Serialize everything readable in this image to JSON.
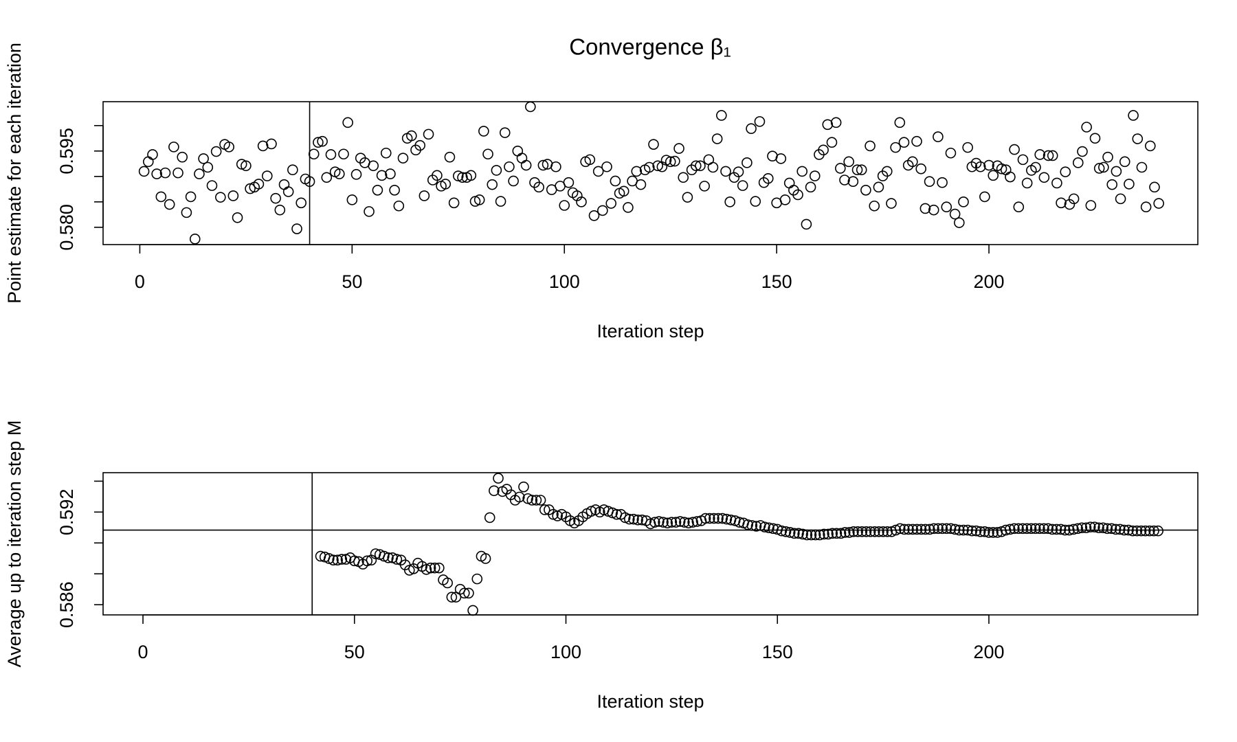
{
  "chart_data": [
    {
      "type": "scatter",
      "title": "Convergence β₁",
      "xlabel": "Iteration step",
      "ylabel": "Point estimate for each iteration",
      "xlim": [
        -8.65,
        249.2
      ],
      "ylim": [
        0.5766,
        0.6047
      ],
      "xticks": [
        0,
        50,
        100,
        150,
        200
      ],
      "yticks": [
        {
          "value": 0.58,
          "label": "0.580"
        },
        {
          "value": 0.585,
          "label": null
        },
        {
          "value": 0.59,
          "label": null
        },
        {
          "value": 0.595,
          "label": "0.595"
        },
        {
          "value": 0.6,
          "label": null
        }
      ],
      "vlines": [
        40
      ],
      "hlines": [],
      "color": "#000000",
      "x": [
        1,
        2,
        3,
        4,
        5,
        6,
        7,
        8,
        9,
        10,
        11,
        12,
        13,
        14,
        15,
        16,
        17,
        18,
        19,
        20,
        21,
        22,
        23,
        24,
        25,
        26,
        27,
        28,
        29,
        30,
        31,
        32,
        33,
        34,
        35,
        36,
        37,
        38,
        39,
        40,
        41,
        42,
        43,
        44,
        45,
        46,
        47,
        48,
        49,
        50,
        51,
        52,
        53,
        54,
        55,
        56,
        57,
        58,
        59,
        60,
        61,
        62,
        63,
        64,
        65,
        66,
        67,
        68,
        69,
        70,
        71,
        72,
        73,
        74,
        75,
        76,
        77,
        78,
        79,
        80,
        81,
        82,
        83,
        84,
        85,
        86,
        87,
        88,
        89,
        90,
        91,
        92,
        93,
        94,
        95,
        96,
        97,
        98,
        99,
        100,
        101,
        102,
        103,
        104,
        105,
        106,
        107,
        108,
        109,
        110,
        111,
        112,
        113,
        114,
        115,
        116,
        117,
        118,
        119,
        120,
        121,
        122,
        123,
        124,
        125,
        126,
        127,
        128,
        129,
        130,
        131,
        132,
        133,
        134,
        135,
        136,
        137,
        138,
        139,
        140,
        141,
        142,
        143,
        144,
        145,
        146,
        147,
        148,
        149,
        150,
        151,
        152,
        153,
        154,
        155,
        156,
        157,
        158,
        159,
        160,
        161,
        162,
        163,
        164,
        165,
        166,
        167,
        168,
        169,
        170,
        171,
        172,
        173,
        174,
        175,
        176,
        177,
        178,
        179,
        180,
        181,
        182,
        183,
        184,
        185,
        186,
        187,
        188,
        189,
        190,
        191,
        192,
        193,
        194,
        195,
        196,
        197,
        198,
        199,
        200,
        201,
        202,
        203,
        204,
        205,
        206,
        207,
        208,
        209,
        210,
        211,
        212,
        213,
        214,
        215,
        216,
        217,
        218,
        219,
        220,
        221,
        222,
        223,
        224,
        225,
        226,
        227,
        228,
        229,
        230,
        231,
        232,
        233,
        234,
        235,
        236,
        237,
        238,
        239,
        240
      ],
      "values": [
        0.591,
        0.5929,
        0.5943,
        0.5905,
        0.586,
        0.5907,
        0.5845,
        0.5958,
        0.5907,
        0.5938,
        0.5829,
        0.586,
        0.5777,
        0.5905,
        0.5935,
        0.5918,
        0.5882,
        0.5949,
        0.5859,
        0.5963,
        0.5958,
        0.5862,
        0.5819,
        0.5924,
        0.5921,
        0.5876,
        0.5879,
        0.5885,
        0.596,
        0.5901,
        0.5964,
        0.5857,
        0.5834,
        0.5884,
        0.587,
        0.5913,
        0.5797,
        0.5848,
        0.5895,
        0.589,
        0.5944,
        0.5967,
        0.5969,
        0.5898,
        0.5943,
        0.5909,
        0.5905,
        0.5944,
        0.6006,
        0.5854,
        0.5904,
        0.5936,
        0.5927,
        0.5831,
        0.5921,
        0.5873,
        0.5902,
        0.5946,
        0.5905,
        0.5873,
        0.5842,
        0.5936,
        0.5975,
        0.598,
        0.5952,
        0.5961,
        0.5862,
        0.5983,
        0.5893,
        0.5902,
        0.5881,
        0.5885,
        0.5938,
        0.5848,
        0.5901,
        0.5898,
        0.5898,
        0.5902,
        0.5851,
        0.5854,
        0.5989,
        0.5944,
        0.5884,
        0.5912,
        0.5851,
        0.5986,
        0.5919,
        0.5891,
        0.595,
        0.5936,
        0.5922,
        0.6037,
        0.5888,
        0.5879,
        0.5922,
        0.5924,
        0.5874,
        0.5919,
        0.5881,
        0.5843,
        0.5888,
        0.5868,
        0.5862,
        0.585,
        0.5929,
        0.5933,
        0.5823,
        0.591,
        0.5833,
        0.5919,
        0.5847,
        0.5891,
        0.5867,
        0.5871,
        0.5839,
        0.5891,
        0.591,
        0.5884,
        0.5913,
        0.5918,
        0.5963,
        0.5921,
        0.5919,
        0.5932,
        0.5929,
        0.593,
        0.5955,
        0.5898,
        0.5859,
        0.5913,
        0.5921,
        0.5921,
        0.5881,
        0.5933,
        0.5918,
        0.5974,
        0.602,
        0.591,
        0.585,
        0.5898,
        0.5909,
        0.5882,
        0.5927,
        0.5994,
        0.5851,
        0.6008,
        0.5888,
        0.5896,
        0.594,
        0.5848,
        0.5935,
        0.5854,
        0.5887,
        0.5873,
        0.5864,
        0.591,
        0.5806,
        0.5879,
        0.5901,
        0.5943,
        0.5952,
        0.6002,
        0.5967,
        0.6006,
        0.5916,
        0.5893,
        0.5929,
        0.589,
        0.5913,
        0.5913,
        0.5873,
        0.596,
        0.5842,
        0.5879,
        0.5901,
        0.591,
        0.5847,
        0.5957,
        0.6006,
        0.5967,
        0.5922,
        0.5929,
        0.5969,
        0.5915,
        0.5837,
        0.589,
        0.5834,
        0.5978,
        0.5888,
        0.584,
        0.5946,
        0.5826,
        0.5809,
        0.585,
        0.5957,
        0.5919,
        0.5926,
        0.5919,
        0.586,
        0.5922,
        0.5902,
        0.5921,
        0.5915,
        0.5913,
        0.5899,
        0.5953,
        0.584,
        0.5933,
        0.5887,
        0.5912,
        0.5918,
        0.5943,
        0.5898,
        0.5941,
        0.5941,
        0.5887,
        0.5848,
        0.5909,
        0.5845,
        0.5856,
        0.5927,
        0.5949,
        0.5997,
        0.5843,
        0.5975,
        0.5916,
        0.5918,
        0.5938,
        0.5884,
        0.591,
        0.5856,
        0.5929,
        0.5885,
        0.602,
        0.5974,
        0.5918,
        0.584,
        0.596,
        0.5879,
        0.5847
      ]
    },
    {
      "type": "scatter",
      "xlabel": "Iteration step",
      "ylabel": "Average up to iteration step M",
      "xlim": [
        -9.43,
        249.4
      ],
      "ylim": [
        0.58534,
        0.59455
      ],
      "xticks": [
        0,
        50,
        100,
        150,
        200
      ],
      "yticks": [
        {
          "value": 0.586,
          "label": "0.586"
        },
        {
          "value": 0.588,
          "label": null
        },
        {
          "value": 0.59,
          "label": null
        },
        {
          "value": 0.592,
          "label": "0.592"
        },
        {
          "value": 0.594,
          "label": null
        }
      ],
      "vlines": [
        40
      ],
      "hlines": [
        0.59083
      ],
      "color": "#000000",
      "x": [
        42,
        43,
        44,
        45,
        46,
        47,
        48,
        49,
        50,
        51,
        52,
        53,
        54,
        55,
        56,
        57,
        58,
        59,
        60,
        61,
        62,
        63,
        64,
        65,
        66,
        67,
        68,
        69,
        70,
        71,
        72,
        73,
        74,
        75,
        76,
        77,
        78,
        79,
        80,
        81,
        82,
        83,
        84,
        85,
        86,
        87,
        88,
        89,
        90,
        91,
        92,
        93,
        94,
        95,
        96,
        97,
        98,
        99,
        100,
        101,
        102,
        103,
        104,
        105,
        106,
        107,
        108,
        109,
        110,
        111,
        112,
        113,
        114,
        115,
        116,
        117,
        118,
        119,
        120,
        121,
        122,
        123,
        124,
        125,
        126,
        127,
        128,
        129,
        130,
        131,
        132,
        133,
        134,
        135,
        136,
        137,
        138,
        139,
        140,
        141,
        142,
        143,
        144,
        145,
        146,
        147,
        148,
        149,
        150,
        151,
        152,
        153,
        154,
        155,
        156,
        157,
        158,
        159,
        160,
        161,
        162,
        163,
        164,
        165,
        166,
        167,
        168,
        169,
        170,
        171,
        172,
        173,
        174,
        175,
        176,
        177,
        178,
        179,
        180,
        181,
        182,
        183,
        184,
        185,
        186,
        187,
        188,
        189,
        190,
        191,
        192,
        193,
        194,
        195,
        196,
        197,
        198,
        199,
        200,
        201,
        202,
        203,
        204,
        205,
        206,
        207,
        208,
        209,
        210,
        211,
        212,
        213,
        214,
        215,
        216,
        217,
        218,
        219,
        220,
        221,
        222,
        223,
        224,
        225,
        226,
        227,
        228,
        229,
        230,
        231,
        232,
        233,
        234,
        235,
        236,
        237,
        238,
        239,
        240
      ],
      "values": [
        0.58914,
        0.58909,
        0.58899,
        0.58889,
        0.58889,
        0.58894,
        0.58894,
        0.58904,
        0.58884,
        0.58879,
        0.58863,
        0.58884,
        0.58889,
        0.5893,
        0.58925,
        0.58914,
        0.58904,
        0.58904,
        0.58894,
        0.58889,
        0.58858,
        0.58823,
        0.58833,
        0.58869,
        0.58848,
        0.58828,
        0.58838,
        0.58838,
        0.58838,
        0.58761,
        0.58741,
        0.58649,
        0.58649,
        0.587,
        0.58675,
        0.58675,
        0.58563,
        0.58767,
        0.58914,
        0.58899,
        0.59164,
        0.59338,
        0.59419,
        0.59333,
        0.59348,
        0.59312,
        0.59277,
        0.59297,
        0.59363,
        0.59287,
        0.59277,
        0.59277,
        0.59277,
        0.59215,
        0.59215,
        0.59185,
        0.59175,
        0.59185,
        0.59169,
        0.59144,
        0.59129,
        0.59144,
        0.59169,
        0.5919,
        0.59205,
        0.59215,
        0.592,
        0.59215,
        0.59205,
        0.59195,
        0.59185,
        0.59185,
        0.59164,
        0.59154,
        0.59154,
        0.59149,
        0.59149,
        0.59144,
        0.59124,
        0.59134,
        0.59139,
        0.59134,
        0.59129,
        0.59134,
        0.59134,
        0.59139,
        0.59134,
        0.59129,
        0.59134,
        0.59139,
        0.59144,
        0.59159,
        0.59159,
        0.59159,
        0.59159,
        0.59159,
        0.59154,
        0.59149,
        0.59144,
        0.59134,
        0.59129,
        0.59118,
        0.59113,
        0.59108,
        0.59113,
        0.59103,
        0.59098,
        0.59093,
        0.59088,
        0.59078,
        0.59073,
        0.59068,
        0.59062,
        0.59062,
        0.59057,
        0.59052,
        0.59052,
        0.59052,
        0.59052,
        0.59057,
        0.59057,
        0.59062,
        0.59062,
        0.59062,
        0.59068,
        0.59068,
        0.59073,
        0.59073,
        0.59073,
        0.59073,
        0.59073,
        0.59073,
        0.59073,
        0.59073,
        0.59073,
        0.59073,
        0.59083,
        0.59093,
        0.59088,
        0.59088,
        0.59088,
        0.59088,
        0.59088,
        0.59088,
        0.59088,
        0.59093,
        0.59093,
        0.59093,
        0.59093,
        0.59093,
        0.59088,
        0.59083,
        0.59083,
        0.59083,
        0.59078,
        0.59078,
        0.59073,
        0.59073,
        0.59068,
        0.59068,
        0.59068,
        0.59073,
        0.59083,
        0.59088,
        0.59093,
        0.59093,
        0.59093,
        0.59093,
        0.59093,
        0.59093,
        0.59093,
        0.59093,
        0.59093,
        0.59088,
        0.59088,
        0.59088,
        0.59083,
        0.59083,
        0.59088,
        0.59093,
        0.59098,
        0.59098,
        0.59103,
        0.59103,
        0.59098,
        0.59098,
        0.59093,
        0.59093,
        0.59088,
        0.59088,
        0.59083,
        0.59083,
        0.59078,
        0.59078,
        0.59078,
        0.59078,
        0.59078,
        0.59078,
        0.59078
      ]
    }
  ]
}
